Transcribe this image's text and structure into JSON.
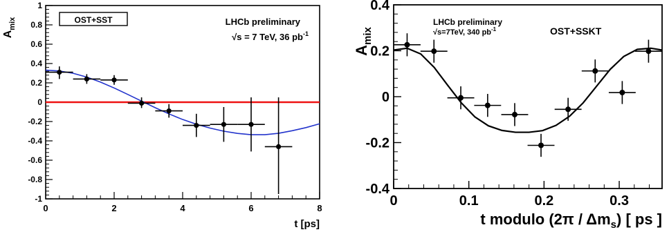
{
  "chart_data": [
    {
      "type": "scatter",
      "xlabel": "t [ps]",
      "ylabel_main": "A",
      "ylabel_sub": "mix",
      "xlim": [
        0,
        8
      ],
      "ylim": [
        -1,
        1
      ],
      "xticks": [
        0,
        2,
        4,
        6,
        8
      ],
      "yticks": [
        -1,
        -0.8,
        -0.6,
        -0.4,
        -0.2,
        0,
        0.2,
        0.4,
        0.6,
        0.8,
        1
      ],
      "legend": "OST+SST",
      "annotation_1": "LHCb preliminary",
      "annotation_2": "√s = 7 TeV, 36 pb",
      "annotation_2_sup": "-1",
      "grid": false,
      "reference_line_y": 0,
      "colors": {
        "points": "#000000",
        "fit": "#2233cc",
        "reference_line": "#ee1111"
      },
      "points": [
        {
          "x": 0.4,
          "y": 0.31,
          "xerr": 0.4,
          "yerr_up": 0.06,
          "yerr_down": 0.07
        },
        {
          "x": 1.2,
          "y": 0.24,
          "xerr": 0.4,
          "yerr_up": 0.05,
          "yerr_down": 0.05
        },
        {
          "x": 2.0,
          "y": 0.23,
          "xerr": 0.4,
          "yerr_up": 0.05,
          "yerr_down": 0.05
        },
        {
          "x": 2.8,
          "y": -0.01,
          "xerr": 0.4,
          "yerr_up": 0.06,
          "yerr_down": 0.05
        },
        {
          "x": 3.6,
          "y": -0.09,
          "xerr": 0.4,
          "yerr_up": 0.07,
          "yerr_down": 0.07
        },
        {
          "x": 4.4,
          "y": -0.24,
          "xerr": 0.4,
          "yerr_up": 0.12,
          "yerr_down": 0.12
        },
        {
          "x": 5.2,
          "y": -0.23,
          "xerr": 0.4,
          "yerr_up": 0.18,
          "yerr_down": 0.18
        },
        {
          "x": 6.0,
          "y": -0.23,
          "xerr": 0.4,
          "yerr_up": 0.28,
          "yerr_down": 0.28
        },
        {
          "x": 6.8,
          "y": -0.46,
          "xerr": 0.4,
          "yerr_up": 0.51,
          "yerr_down": 0.49
        }
      ],
      "fit_curve": {
        "x": [
          0,
          0.4,
          0.8,
          1.2,
          1.6,
          2.0,
          2.4,
          2.8,
          3.2,
          3.6,
          4.0,
          4.4,
          4.8,
          5.2,
          5.6,
          6.0,
          6.4,
          6.8,
          7.2,
          7.6,
          8.0
        ],
        "y": [
          0.332,
          0.323,
          0.299,
          0.26,
          0.208,
          0.147,
          0.08,
          0.011,
          -0.057,
          -0.121,
          -0.179,
          -0.228,
          -0.268,
          -0.3,
          -0.323,
          -0.336,
          -0.336,
          -0.322,
          -0.295,
          -0.263,
          -0.223
        ]
      }
    },
    {
      "type": "scatter",
      "xlabel_main": "t modulo (2π / Δm",
      "xlabel_sub": "s",
      "xlabel_end": ") [ ps ]",
      "ylabel_main": "A",
      "ylabel_sub": "mix",
      "xlim": [
        0,
        0.357
      ],
      "ylim": [
        -0.4,
        0.4
      ],
      "xticks": [
        0,
        0.1,
        0.2,
        0.3
      ],
      "xtick_labels": [
        "0",
        "0.1",
        "0.2",
        "0.3"
      ],
      "yticks": [
        -0.4,
        -0.2,
        0,
        0.2,
        0.4
      ],
      "ytick_labels": [
        "-0.4",
        "-0.2",
        "0",
        "0.2",
        "0.4"
      ],
      "annotation_1": "LHCb preliminary",
      "annotation_2": "√s=7TeV, 340 pb",
      "annotation_2_sup": "-1",
      "series_label": "OST+SSKT",
      "grid": false,
      "colors": {
        "points": "#000000",
        "fit": "#000000"
      },
      "points": [
        {
          "x": 0.0179,
          "y": 0.226,
          "xerr": 0.0179,
          "yerr": 0.05
        },
        {
          "x": 0.0536,
          "y": 0.198,
          "xerr": 0.0179,
          "yerr": 0.05
        },
        {
          "x": 0.0893,
          "y": -0.005,
          "xerr": 0.0179,
          "yerr": 0.05
        },
        {
          "x": 0.125,
          "y": -0.038,
          "xerr": 0.0179,
          "yerr": 0.05
        },
        {
          "x": 0.161,
          "y": -0.078,
          "xerr": 0.0179,
          "yerr": 0.05
        },
        {
          "x": 0.196,
          "y": -0.212,
          "xerr": 0.0179,
          "yerr": 0.05
        },
        {
          "x": 0.232,
          "y": -0.055,
          "xerr": 0.0179,
          "yerr": 0.05
        },
        {
          "x": 0.268,
          "y": 0.112,
          "xerr": 0.0179,
          "yerr": 0.05
        },
        {
          "x": 0.304,
          "y": 0.018,
          "xerr": 0.0179,
          "yerr": 0.05
        },
        {
          "x": 0.339,
          "y": 0.198,
          "xerr": 0.0179,
          "yerr": 0.05
        }
      ],
      "fit_curve": {
        "x": [
          0,
          0.018,
          0.036,
          0.054,
          0.072,
          0.09,
          0.108,
          0.126,
          0.144,
          0.162,
          0.18,
          0.198,
          0.216,
          0.234,
          0.252,
          0.27,
          0.288,
          0.306,
          0.324,
          0.342,
          0.357
        ],
        "y": [
          0.203,
          0.211,
          0.186,
          0.127,
          0.049,
          -0.027,
          -0.088,
          -0.127,
          -0.147,
          -0.155,
          -0.155,
          -0.148,
          -0.125,
          -0.085,
          -0.027,
          0.046,
          0.119,
          0.175,
          0.206,
          0.211,
          0.203
        ]
      }
    }
  ]
}
